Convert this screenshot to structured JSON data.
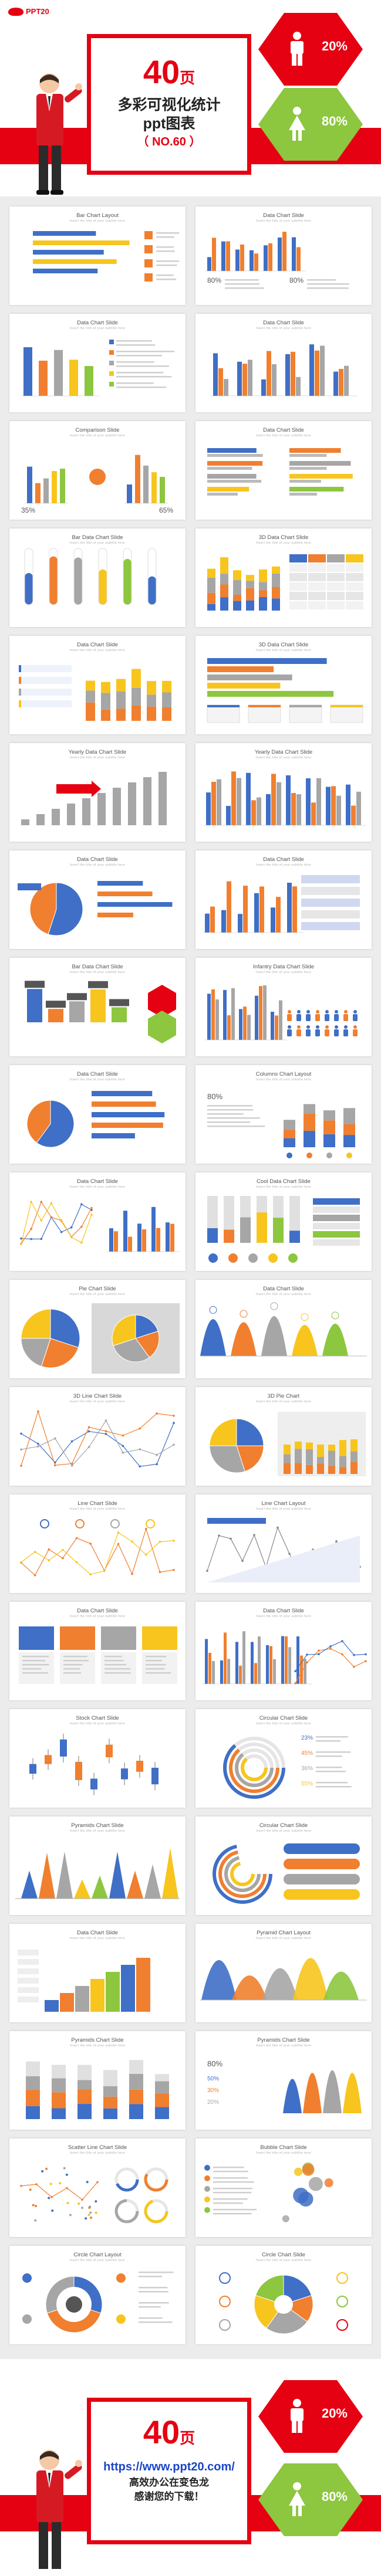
{
  "header": {
    "logo": "PPT20",
    "count": "40",
    "count_unit": "页",
    "title_line1": "多彩可视化统计",
    "title_line2": "ppt图表",
    "code": "（ NO.60 ）",
    "male_pct": "20%",
    "female_pct": "80%"
  },
  "footer": {
    "count": "40",
    "count_unit": "页",
    "url": "https://www.ppt20.com/",
    "slogan1": "高效办公在变色龙",
    "slogan2": "感谢您的下载！",
    "male_pct": "20%",
    "female_pct": "80%"
  },
  "colors": {
    "brand_red": "#e50012",
    "green": "#8dc63f",
    "blue": "#3f6fc6",
    "orange": "#f07f2f",
    "yellow": "#f7c51e",
    "gray": "#a6a6a6"
  },
  "slides": [
    {
      "title": "Bar Chart Layout",
      "sub": "Insert the title of your subtitle here",
      "kind": "hbars-side"
    },
    {
      "title": "Data Chart Slide",
      "sub": "Insert the title of your subtitle here",
      "kind": "cols-text"
    },
    {
      "title": "Data Chart Slide",
      "sub": "Insert the title of your subtitle here",
      "kind": "cols-list"
    },
    {
      "title": "Data Chart Slide",
      "sub": "Insert the title of your subtitle here",
      "kind": "cols-grouped"
    },
    {
      "title": "Comparison Slide",
      "sub": "Insert the title of your subtitle here",
      "kind": "compare"
    },
    {
      "title": "Data Chart Slide",
      "sub": "Insert the title of your subtitle here",
      "kind": "hbars-double"
    },
    {
      "title": "Bar Data Chart Slide",
      "sub": "Insert the title of your subtitle here",
      "kind": "pill-bars"
    },
    {
      "title": "3D Data Chart Slide",
      "sub": "Insert the title of your subtitle here",
      "kind": "stacked-table"
    },
    {
      "title": "Data Chart Slide",
      "sub": "Insert the title of your subtitle here",
      "kind": "list-cols"
    },
    {
      "title": "3D Data Chart Slide",
      "sub": "Insert the title of your subtitle here",
      "kind": "hbars-3d"
    },
    {
      "title": "Yearly Data Chart Slide",
      "sub": "Insert the title of your subtitle here",
      "kind": "yearly"
    },
    {
      "title": "Yearly Data Chart Slide",
      "sub": "Insert the title of your subtitle here",
      "kind": "yearly-cols"
    },
    {
      "title": "Data Chart Slide",
      "sub": "Insert the title of your subtitle here",
      "kind": "pie-bars"
    },
    {
      "title": "Data Chart Slide",
      "sub": "Insert the title of your subtitle here",
      "kind": "cols-listright"
    },
    {
      "title": "Bar Data Chart Slide",
      "sub": "Insert the title of your subtitle here",
      "kind": "puzzle"
    },
    {
      "title": "Infantry Data Chart Slide",
      "sub": "Insert the title of your subtitle here",
      "kind": "people"
    },
    {
      "title": "Data Chart Slide",
      "sub": "Insert the title of your subtitle here",
      "kind": "pie-hbars"
    },
    {
      "title": "Columns Chart Layout",
      "sub": "Insert the title of your subtitle here",
      "kind": "stacked-icons"
    },
    {
      "title": "Data Chart Slide",
      "sub": "Insert the title of your subtitle here",
      "kind": "lines-cols"
    },
    {
      "title": "Cool Data Chart Slide",
      "sub": "Insert the title of your subtitle here",
      "kind": "gray-cols"
    },
    {
      "title": "Pie Chart Slide",
      "sub": "Insert the title of your subtitle here",
      "kind": "pies"
    },
    {
      "title": "Data Chart Slide",
      "sub": "Insert the title of your subtitle here",
      "kind": "peaks"
    },
    {
      "title": "3D Line Chart Slide",
      "sub": "Insert the title of your subtitle here",
      "kind": "lines"
    },
    {
      "title": "3D Pie Chart",
      "sub": "Insert the title of your subtitle here",
      "kind": "pie-stack"
    },
    {
      "title": "Line Chart Slide",
      "sub": "Insert the title of your subtitle here",
      "kind": "line-pins"
    },
    {
      "title": "Line Chart Layout",
      "sub": "Insert the title of your subtitle here",
      "kind": "line-gray"
    },
    {
      "title": "Data Chart Slide",
      "sub": "Insert the title of your subtitle here",
      "kind": "tiles"
    },
    {
      "title": "Data Chart Slide",
      "sub": "Insert the title of your subtitle here",
      "kind": "cols-curves"
    },
    {
      "title": "Stock Chart Slide",
      "sub": "Insert the title of your subtitle here",
      "kind": "stock"
    },
    {
      "title": "Circular Chart Slide",
      "sub": "Insert the title of your subtitle here",
      "kind": "rings"
    },
    {
      "title": "Pyramids Chart Slide",
      "sub": "Insert the title of your subtitle here",
      "kind": "pyramids"
    },
    {
      "title": "Circular Chart Slide",
      "sub": "Insert the title of your subtitle here",
      "kind": "ring-bars"
    },
    {
      "title": "Data Chart Slide",
      "sub": "Insert the title of your subtitle here",
      "kind": "stairs"
    },
    {
      "title": "Pyramid Chart Layout",
      "sub": "Insert the title of your subtitle here",
      "kind": "hills"
    },
    {
      "title": "Pyramids Chart Slide",
      "sub": "Insert the title of your subtitle here",
      "kind": "tri-stack"
    },
    {
      "title": "Pyramids Chart Slide",
      "sub": "Insert the title of your subtitle here",
      "kind": "cones-people"
    },
    {
      "title": "Scatter Line Chart Slide",
      "sub": "Insert the title of your subtitle here",
      "kind": "scatter-donuts"
    },
    {
      "title": "Bubble Chart Slide",
      "sub": "Insert the title of your subtitle here",
      "kind": "bubbles"
    },
    {
      "title": "Circle Chart Layout",
      "sub": "Insert the title of your subtitle here",
      "kind": "circle-icons"
    },
    {
      "title": "Circle Chart Slide",
      "sub": "Insert the title of your subtitle here",
      "kind": "rose"
    }
  ]
}
